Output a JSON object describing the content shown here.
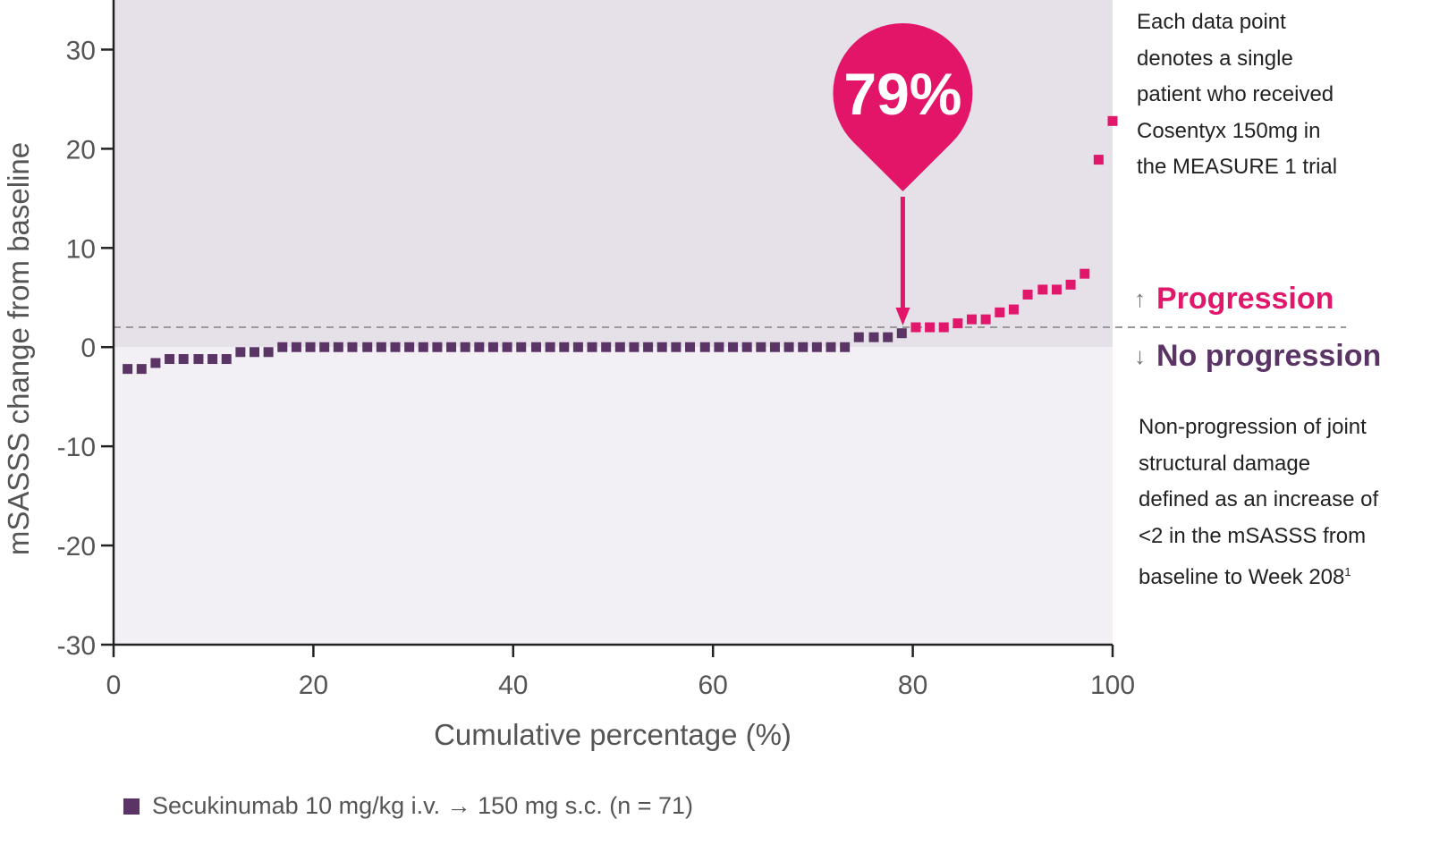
{
  "chart_data": {
    "type": "scatter",
    "title": "",
    "xlabel": "Cumulative percentage (%)",
    "ylabel": "mSASSS change from baseline",
    "xlim": [
      0,
      100
    ],
    "ylim": [
      -30,
      35
    ],
    "x_ticks": [
      0,
      20,
      40,
      60,
      80,
      100
    ],
    "y_ticks": [
      30,
      20,
      10,
      0,
      -10,
      -20,
      -30
    ],
    "threshold": 2,
    "grid": false,
    "legend_position": "bottom-left",
    "series": [
      {
        "name": "Secukinumab 10 mg/kg i.v. → 150 mg s.c. (n = 71)",
        "color": "#5b3466",
        "progression_color": "#e0176b",
        "points": [
          [
            1.4,
            -2.2
          ],
          [
            2.8,
            -2.2
          ],
          [
            4.2,
            -1.6
          ],
          [
            5.6,
            -1.2
          ],
          [
            7.0,
            -1.2
          ],
          [
            8.5,
            -1.2
          ],
          [
            9.9,
            -1.2
          ],
          [
            11.3,
            -1.2
          ],
          [
            12.7,
            -0.5
          ],
          [
            14.1,
            -0.5
          ],
          [
            15.5,
            -0.5
          ],
          [
            16.9,
            0
          ],
          [
            18.3,
            0
          ],
          [
            19.7,
            0
          ],
          [
            21.1,
            0
          ],
          [
            22.5,
            0
          ],
          [
            23.9,
            0
          ],
          [
            25.4,
            0
          ],
          [
            26.8,
            0
          ],
          [
            28.2,
            0
          ],
          [
            29.6,
            0
          ],
          [
            31.0,
            0
          ],
          [
            32.4,
            0
          ],
          [
            33.8,
            0
          ],
          [
            35.2,
            0
          ],
          [
            36.6,
            0
          ],
          [
            38.0,
            0
          ],
          [
            39.4,
            0
          ],
          [
            40.8,
            0
          ],
          [
            42.3,
            0
          ],
          [
            43.7,
            0
          ],
          [
            45.1,
            0
          ],
          [
            46.5,
            0
          ],
          [
            47.9,
            0
          ],
          [
            49.3,
            0
          ],
          [
            50.7,
            0
          ],
          [
            52.1,
            0
          ],
          [
            53.5,
            0
          ],
          [
            54.9,
            0
          ],
          [
            56.3,
            0
          ],
          [
            57.7,
            0
          ],
          [
            59.2,
            0
          ],
          [
            60.6,
            0
          ],
          [
            62.0,
            0
          ],
          [
            63.4,
            0
          ],
          [
            64.8,
            0
          ],
          [
            66.2,
            0
          ],
          [
            67.6,
            0
          ],
          [
            69.0,
            0
          ],
          [
            70.4,
            0
          ],
          [
            71.8,
            0
          ],
          [
            73.2,
            0
          ],
          [
            74.6,
            1.0
          ],
          [
            76.1,
            1.0
          ],
          [
            77.5,
            1.0
          ],
          [
            78.9,
            1.4
          ],
          [
            80.3,
            2.0
          ],
          [
            81.7,
            2.0
          ],
          [
            83.1,
            2.0
          ],
          [
            84.5,
            2.4
          ],
          [
            85.9,
            2.8
          ],
          [
            87.3,
            2.8
          ],
          [
            88.7,
            3.5
          ],
          [
            90.1,
            3.8
          ],
          [
            91.5,
            5.3
          ],
          [
            93.0,
            5.8
          ],
          [
            94.4,
            5.8
          ],
          [
            95.8,
            6.3
          ],
          [
            97.2,
            7.4
          ],
          [
            98.6,
            18.9
          ],
          [
            100,
            22.8
          ]
        ]
      }
    ],
    "callout": {
      "text": "79%",
      "x": 79,
      "color": "#e31568"
    },
    "zones": {
      "progression": {
        "label": "Progression",
        "arrow": "↑",
        "color": "#e0176b"
      },
      "no_progression": {
        "label": "No progression",
        "arrow": "↓",
        "color": "#5b3466"
      }
    },
    "annotations": {
      "top_note": [
        "Each data point",
        "denotes a single",
        "patient who received",
        "Cosentyx 150mg in",
        "the MEASURE 1 trial"
      ],
      "bottom_note": [
        "Non-progression of joint",
        "structural damage",
        "defined as an increase of",
        "<2 in the mSASSS from",
        "baseline to Week 208"
      ],
      "bottom_note_superscript": "1"
    },
    "colors": {
      "upper_zone": "#e6e0e8",
      "lower_zone": "#f3f0f5",
      "axis": "#222222",
      "threshold_line": "#999999"
    }
  }
}
